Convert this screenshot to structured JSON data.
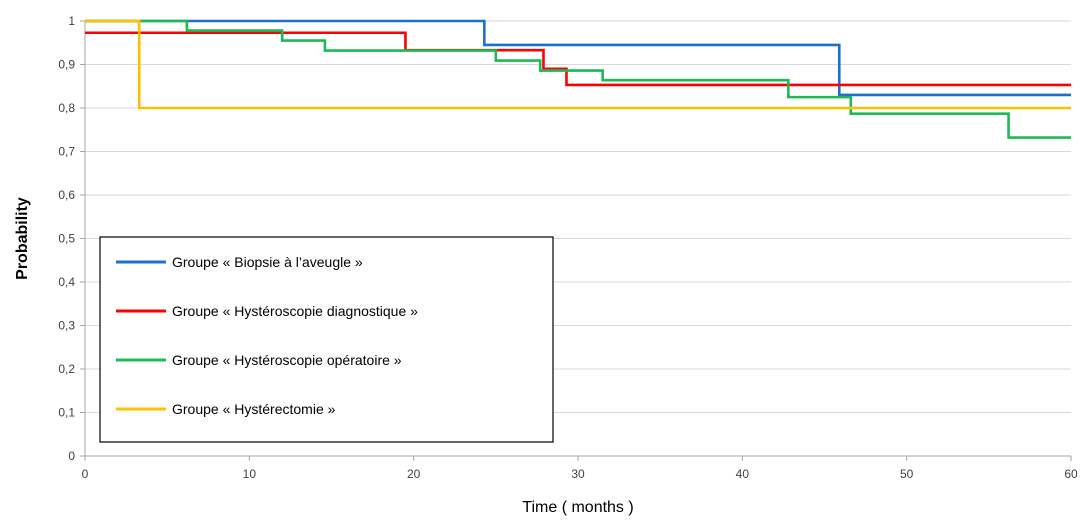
{
  "chart_data": {
    "type": "line",
    "title": "",
    "xlabel": "Time ( months )",
    "ylabel": "Probability",
    "xlim": [
      0,
      60
    ],
    "ylim": [
      0,
      1
    ],
    "xticks": [
      "0",
      "10",
      "20",
      "30",
      "40",
      "50",
      "60"
    ],
    "yticks": [
      "0",
      "0,1",
      "0,2",
      "0,3",
      "0,4",
      "0,5",
      "0,6",
      "0,7",
      "0,8",
      "0,9",
      "1"
    ],
    "grid": "horizontal",
    "legend_position": "lower-left",
    "step": true,
    "series": [
      {
        "name": "Groupe « Biopsie à l’aveugle »",
        "color": "#1f6fd1",
        "x": [
          0,
          24.3,
          45.9,
          60
        ],
        "y": [
          1,
          0.945,
          0.83,
          0.83
        ]
      },
      {
        "name": "Groupe « Hystéroscopie diagnostique »",
        "color": "#ff0000",
        "x": [
          0,
          19.5,
          27.9,
          29.3,
          60
        ],
        "y": [
          0.973,
          0.933,
          0.89,
          0.853,
          0.853
        ]
      },
      {
        "name": "Groupe « Hystéroscopie opératoire »",
        "color": "#1db954",
        "x": [
          0,
          6.2,
          12,
          14.6,
          25,
          27.7,
          31.5,
          36,
          42.8,
          46.6,
          56.2,
          60
        ],
        "y": [
          1,
          0.978,
          0.955,
          0.932,
          0.909,
          0.886,
          0.864,
          0.864,
          0.825,
          0.787,
          0.732,
          0.732
        ]
      },
      {
        "name": "Groupe « Hystérectomie »",
        "color": "#ffc000",
        "x": [
          0,
          3.3,
          60
        ],
        "y": [
          1,
          0.8,
          0.8
        ]
      }
    ]
  }
}
